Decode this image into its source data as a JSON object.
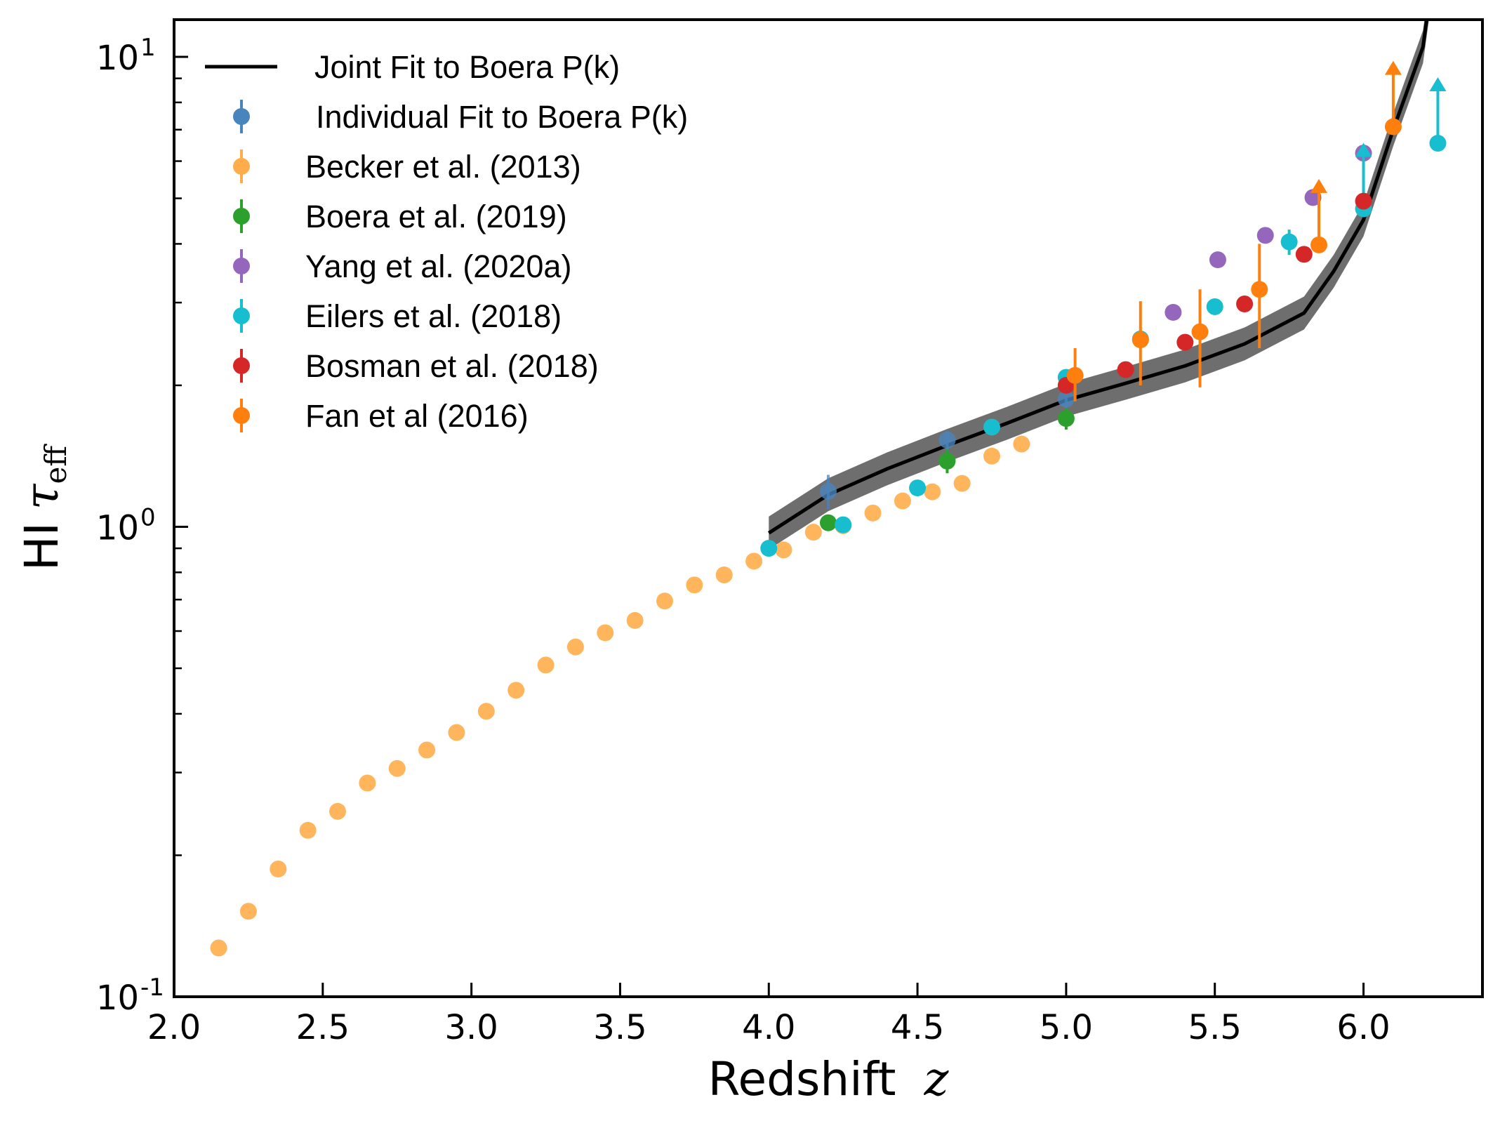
{
  "chart_data": {
    "type": "scatter",
    "xlabel": "Redshift",
    "xlabel_var": "z",
    "ylabel": "HI",
    "ylabel_var": "τ",
    "ylabel_sub": "eff",
    "xlim": [
      2.0,
      6.4
    ],
    "ylim": [
      0.1,
      12
    ],
    "yscale": "log",
    "grid": false,
    "legend_position": "top-left",
    "x_ticks": [
      2.0,
      2.5,
      3.0,
      3.5,
      4.0,
      4.5,
      5.0,
      5.5,
      6.0
    ],
    "x_tick_labels": [
      "2.0",
      "2.5",
      "3.0",
      "3.5",
      "4.0",
      "4.5",
      "5.0",
      "5.5",
      "6.0"
    ],
    "y_major_ticks": [
      {
        "value": 0.1,
        "base": "10",
        "exp": "-1"
      },
      {
        "value": 1,
        "base": "10",
        "exp": "0"
      },
      {
        "value": 10,
        "base": "10",
        "exp": "1"
      }
    ],
    "y_minor_ticks": [
      0.2,
      0.3,
      0.4,
      0.5,
      0.6,
      0.7,
      0.8,
      0.9,
      2,
      3,
      4,
      5,
      6,
      7,
      8,
      9
    ],
    "line_series": {
      "name": "Joint Fit to Boera P(k)",
      "color": "#000000",
      "band_color": "#555555",
      "x": [
        4.0,
        4.2,
        4.4,
        4.6,
        4.8,
        5.0,
        5.2,
        5.4,
        5.6,
        5.8,
        5.9,
        6.0,
        6.1,
        6.2,
        6.22
      ],
      "y": [
        0.97,
        1.17,
        1.33,
        1.49,
        1.66,
        1.86,
        2.02,
        2.2,
        2.45,
        2.85,
        3.5,
        4.5,
        7.0,
        10.5,
        13.0
      ],
      "band_width": 0.035
    },
    "series": [
      {
        "name": "Individual Fit to Boera P(k)",
        "color": "#4a84bd",
        "x": [
          4.2,
          4.6,
          5.0
        ],
        "y": [
          1.19,
          1.53,
          1.87
        ],
        "yerr": [
          0.1,
          0.07,
          0.08
        ],
        "lower_limit": [
          false,
          false,
          false
        ]
      },
      {
        "name": "Becker et al. (2013)",
        "color": "#ffad4a",
        "x": [
          2.15,
          2.25,
          2.35,
          2.45,
          2.55,
          2.65,
          2.75,
          2.85,
          2.95,
          3.05,
          3.15,
          3.25,
          3.35,
          3.45,
          3.55,
          3.65,
          3.75,
          3.85,
          3.95,
          4.05,
          4.15,
          4.25,
          4.35,
          4.45,
          4.55,
          4.65,
          4.75,
          4.85
        ],
        "y": [
          0.127,
          0.152,
          0.187,
          0.226,
          0.248,
          0.285,
          0.306,
          0.335,
          0.365,
          0.405,
          0.449,
          0.508,
          0.555,
          0.595,
          0.632,
          0.695,
          0.752,
          0.79,
          0.845,
          0.893,
          0.974,
          1.005,
          1.07,
          1.135,
          1.187,
          1.237,
          1.414,
          1.5
        ],
        "yerr": [],
        "lower_limit": []
      },
      {
        "name": "Boera et al. (2019)",
        "color": "#2ca02c",
        "x": [
          4.2,
          4.6,
          5.0
        ],
        "y": [
          1.02,
          1.38,
          1.7
        ],
        "yerr": [
          0.04,
          0.08,
          0.09
        ],
        "lower_limit": [
          false,
          false,
          false
        ]
      },
      {
        "name": "Yang et al. (2020a)",
        "color": "#9467bd",
        "x": [
          5.36,
          5.51,
          5.67,
          5.83,
          6.0
        ],
        "y": [
          2.86,
          3.7,
          4.17,
          5.02,
          6.24
        ],
        "yerr": [],
        "lower_limit": []
      },
      {
        "name": "Eilers et al. (2018)",
        "color": "#17becf",
        "x": [
          4.0,
          4.25,
          4.5,
          4.75,
          5.0,
          5.25,
          5.5,
          5.75,
          6.0,
          6.25
        ],
        "y": [
          0.9,
          1.01,
          1.21,
          1.63,
          2.08,
          2.51,
          2.94,
          4.04,
          4.75,
          6.55
        ],
        "yerr": [
          0.0,
          0.0,
          0.04,
          0.0,
          0.08,
          0.08,
          0.0,
          0.25,
          0.0,
          0.0
        ],
        "lower_limit": [
          false,
          false,
          false,
          false,
          false,
          false,
          false,
          false,
          true,
          true
        ]
      },
      {
        "name": "Bosman et al. (2018)",
        "color": "#d62728",
        "x": [
          5.0,
          5.2,
          5.4,
          5.6,
          5.8,
          6.0
        ],
        "y": [
          2.0,
          2.16,
          2.47,
          2.98,
          3.8,
          4.93
        ],
        "yerr": [
          0.06,
          0.05,
          0.06,
          0.08,
          0.1,
          0.12
        ],
        "lower_limit": []
      },
      {
        "name": "Fan et al (2016)",
        "color": "#ff7f0e",
        "x": [
          5.03,
          5.25,
          5.45,
          5.65,
          5.85,
          6.1
        ],
        "y": [
          2.1,
          2.5,
          2.6,
          3.2,
          3.98,
          7.1
        ],
        "yerr_low": [
          0.25,
          0.5,
          0.62,
          0.8,
          0.0,
          0.0
        ],
        "yerr_high": [
          0.3,
          0.52,
          0.6,
          0.8,
          0.0,
          0.0
        ],
        "lower_limit": [
          false,
          false,
          false,
          false,
          true,
          true
        ]
      }
    ]
  }
}
